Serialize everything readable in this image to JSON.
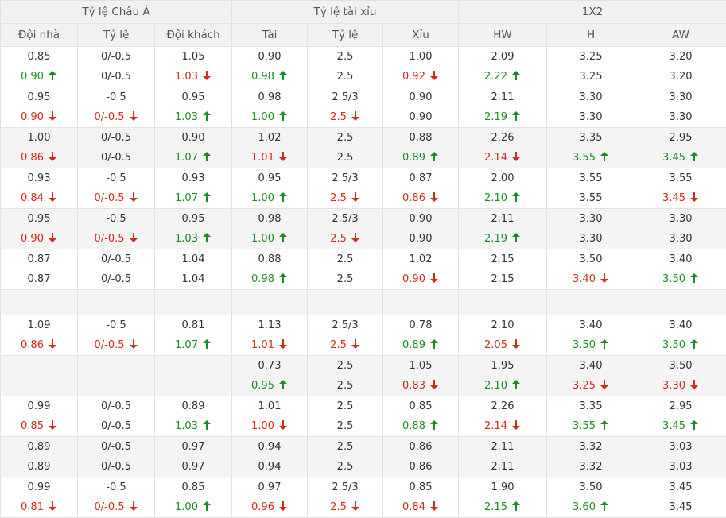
{
  "header": {
    "groups": [
      "Tỷ lệ Châu Á",
      "Tỷ lệ tài xỉu",
      "1X2"
    ],
    "columns": [
      "Đội nhà",
      "Tỷ lệ",
      "Đội khách",
      "Tài",
      "Tỷ lệ",
      "Xỉu",
      "HW",
      "H",
      "AW"
    ]
  },
  "colors": {
    "up": "#1c8d22",
    "down": "#d12b1b"
  },
  "rows": [
    {
      "alt": false,
      "cells": [
        [
          "0.85",
          [
            "0.90",
            "up"
          ]
        ],
        [
          "0/-0.5",
          [
            "0/-0.5",
            ""
          ]
        ],
        [
          "1.05",
          [
            "1.03",
            "down"
          ]
        ],
        [
          "0.90",
          [
            "0.98",
            "up"
          ]
        ],
        [
          "2.5",
          [
            "2.5",
            ""
          ]
        ],
        [
          "1.00",
          [
            "0.92",
            "down"
          ]
        ],
        [
          "2.09",
          [
            "2.22",
            "up"
          ]
        ],
        [
          "3.25",
          [
            "3.25",
            ""
          ]
        ],
        [
          "3.20",
          [
            "3.20",
            ""
          ]
        ]
      ]
    },
    {
      "alt": false,
      "cells": [
        [
          "0.95",
          [
            "0.90",
            "down"
          ]
        ],
        [
          "-0.5",
          [
            "0/-0.5",
            "down"
          ]
        ],
        [
          "0.95",
          [
            "1.03",
            "up"
          ]
        ],
        [
          "0.98",
          [
            "1.00",
            "up"
          ]
        ],
        [
          "2.5/3",
          [
            "2.5",
            "down"
          ]
        ],
        [
          "0.90",
          [
            "0.90",
            ""
          ]
        ],
        [
          "2.11",
          [
            "2.19",
            "up"
          ]
        ],
        [
          "3.30",
          [
            "3.30",
            ""
          ]
        ],
        [
          "3.30",
          [
            "3.30",
            ""
          ]
        ]
      ]
    },
    {
      "alt": true,
      "cells": [
        [
          "1.00",
          [
            "0.86",
            "down"
          ]
        ],
        [
          "0/-0.5",
          [
            "0/-0.5",
            ""
          ]
        ],
        [
          "0.90",
          [
            "1.07",
            "up"
          ]
        ],
        [
          "1.02",
          [
            "1.01",
            "down"
          ]
        ],
        [
          "2.5",
          [
            "2.5",
            ""
          ]
        ],
        [
          "0.88",
          [
            "0.89",
            "up"
          ]
        ],
        [
          "2.26",
          [
            "2.14",
            "down"
          ]
        ],
        [
          "3.35",
          [
            "3.55",
            "up"
          ]
        ],
        [
          "2.95",
          [
            "3.45",
            "up"
          ]
        ]
      ]
    },
    {
      "alt": false,
      "cells": [
        [
          "0.93",
          [
            "0.84",
            "down"
          ]
        ],
        [
          "-0.5",
          [
            "0/-0.5",
            "down"
          ]
        ],
        [
          "0.93",
          [
            "1.07",
            "up"
          ]
        ],
        [
          "0.95",
          [
            "1.00",
            "up"
          ]
        ],
        [
          "2.5/3",
          [
            "2.5",
            "down"
          ]
        ],
        [
          "0.87",
          [
            "0.86",
            "down"
          ]
        ],
        [
          "2.00",
          [
            "2.10",
            "up"
          ]
        ],
        [
          "3.55",
          [
            "3.55",
            ""
          ]
        ],
        [
          "3.55",
          [
            "3.45",
            "down"
          ]
        ]
      ]
    },
    {
      "alt": true,
      "cells": [
        [
          "0.95",
          [
            "0.90",
            "down"
          ]
        ],
        [
          "-0.5",
          [
            "0/-0.5",
            "down"
          ]
        ],
        [
          "0.95",
          [
            "1.03",
            "up"
          ]
        ],
        [
          "0.98",
          [
            "1.00",
            "up"
          ]
        ],
        [
          "2.5/3",
          [
            "2.5",
            "down"
          ]
        ],
        [
          "0.90",
          [
            "0.90",
            ""
          ]
        ],
        [
          "2.11",
          [
            "2.19",
            "up"
          ]
        ],
        [
          "3.30",
          [
            "3.30",
            ""
          ]
        ],
        [
          "3.30",
          [
            "3.30",
            ""
          ]
        ]
      ]
    },
    {
      "alt": false,
      "cells": [
        [
          "0.87",
          [
            "0.87",
            ""
          ]
        ],
        [
          "0/-0.5",
          [
            "0/-0.5",
            ""
          ]
        ],
        [
          "1.04",
          [
            "1.04",
            ""
          ]
        ],
        [
          "0.88",
          [
            "0.98",
            "up"
          ]
        ],
        [
          "2.5",
          [
            "2.5",
            ""
          ]
        ],
        [
          "1.02",
          [
            "0.90",
            "down"
          ]
        ],
        [
          "2.15",
          [
            "2.15",
            ""
          ]
        ],
        [
          "3.50",
          [
            "3.40",
            "down"
          ]
        ],
        [
          "3.40",
          [
            "3.50",
            "up"
          ]
        ]
      ]
    },
    {
      "sep": true
    },
    {
      "alt": false,
      "cells": [
        [
          "1.09",
          [
            "0.86",
            "down"
          ]
        ],
        [
          "-0.5",
          [
            "0/-0.5",
            "down"
          ]
        ],
        [
          "0.81",
          [
            "1.07",
            "up"
          ]
        ],
        [
          "1.13",
          [
            "1.01",
            "down"
          ]
        ],
        [
          "2.5/3",
          [
            "2.5",
            "down"
          ]
        ],
        [
          "0.78",
          [
            "0.89",
            "up"
          ]
        ],
        [
          "2.10",
          [
            "2.05",
            "down"
          ]
        ],
        [
          "3.40",
          [
            "3.50",
            "up"
          ]
        ],
        [
          "3.40",
          [
            "3.50",
            "up"
          ]
        ]
      ]
    },
    {
      "alt": true,
      "cells": [
        [
          "",
          [
            "",
            ""
          ]
        ],
        [
          "",
          [
            "",
            ""
          ]
        ],
        [
          "",
          [
            "",
            ""
          ]
        ],
        [
          "0.73",
          [
            "0.95",
            "up"
          ]
        ],
        [
          "2.5",
          [
            "2.5",
            ""
          ]
        ],
        [
          "1.05",
          [
            "0.83",
            "down"
          ]
        ],
        [
          "1.95",
          [
            "2.10",
            "up"
          ]
        ],
        [
          "3.40",
          [
            "3.25",
            "down"
          ]
        ],
        [
          "3.50",
          [
            "3.30",
            "down"
          ]
        ]
      ]
    },
    {
      "alt": false,
      "cells": [
        [
          "0.99",
          [
            "0.85",
            "down"
          ]
        ],
        [
          "0/-0.5",
          [
            "0/-0.5",
            ""
          ]
        ],
        [
          "0.89",
          [
            "1.03",
            "up"
          ]
        ],
        [
          "1.01",
          [
            "1.00",
            "down"
          ]
        ],
        [
          "2.5",
          [
            "2.5",
            ""
          ]
        ],
        [
          "0.85",
          [
            "0.88",
            "up"
          ]
        ],
        [
          "2.26",
          [
            "2.14",
            "down"
          ]
        ],
        [
          "3.35",
          [
            "3.55",
            "up"
          ]
        ],
        [
          "2.95",
          [
            "3.45",
            "up"
          ]
        ]
      ]
    },
    {
      "alt": true,
      "cells": [
        [
          "0.89",
          [
            "0.89",
            ""
          ]
        ],
        [
          "0/-0.5",
          [
            "0/-0.5",
            ""
          ]
        ],
        [
          "0.97",
          [
            "0.97",
            ""
          ]
        ],
        [
          "0.94",
          [
            "0.94",
            ""
          ]
        ],
        [
          "2.5",
          [
            "2.5",
            ""
          ]
        ],
        [
          "0.86",
          [
            "0.86",
            ""
          ]
        ],
        [
          "2.11",
          [
            "2.11",
            ""
          ]
        ],
        [
          "3.32",
          [
            "3.32",
            ""
          ]
        ],
        [
          "3.03",
          [
            "3.03",
            ""
          ]
        ]
      ]
    },
    {
      "alt": false,
      "cells": [
        [
          "0.99",
          [
            "0.81",
            "down"
          ]
        ],
        [
          "-0.5",
          [
            "0/-0.5",
            "down"
          ]
        ],
        [
          "0.85",
          [
            "1.00",
            "up"
          ]
        ],
        [
          "0.97",
          [
            "0.96",
            "down"
          ]
        ],
        [
          "2.5/3",
          [
            "2.5",
            "down"
          ]
        ],
        [
          "0.85",
          [
            "0.84",
            "down"
          ]
        ],
        [
          "1.90",
          [
            "2.15",
            "up"
          ]
        ],
        [
          "3.50",
          [
            "3.60",
            "up"
          ]
        ],
        [
          "3.45",
          [
            "3.45",
            ""
          ]
        ]
      ]
    }
  ]
}
